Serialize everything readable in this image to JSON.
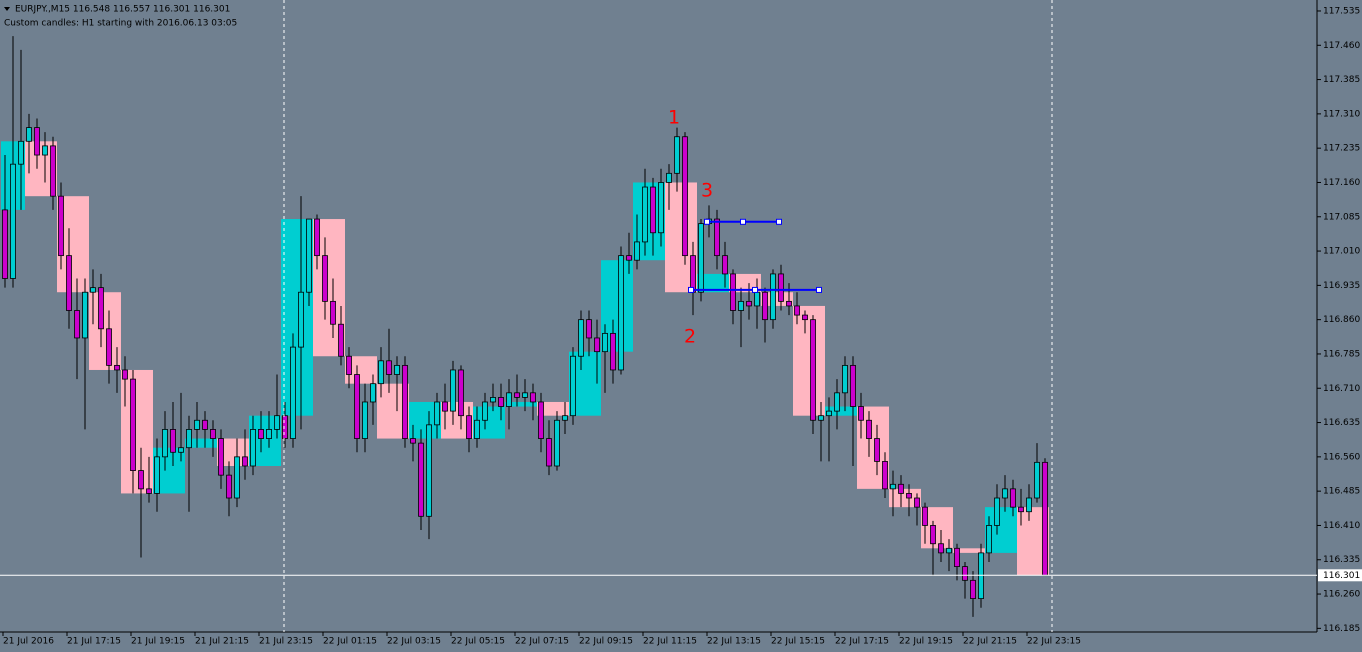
{
  "chart_data": {
    "type": "candlestick",
    "title": "EURJPY.,M15  116.548 116.557 116.301 116.301",
    "subtitle": "Custom candles: H1 starting with 2016.06.13 03:05",
    "ylim": [
      116.177,
      117.559
    ],
    "yticks": [
      117.535,
      {
        "value": 117.46,
        "label": "117.460"
      },
      117.385,
      {
        "value": 117.31,
        "label": "117.310"
      },
      117.235,
      {
        "value": 117.16,
        "label": "117.160"
      },
      117.085,
      {
        "value": 117.01,
        "label": "117.010"
      },
      116.935,
      {
        "value": 116.86,
        "label": "116.860"
      },
      116.785,
      {
        "value": 116.71,
        "label": "116.710"
      },
      116.635,
      {
        "value": 116.56,
        "label": "116.560"
      },
      116.485,
      {
        "value": 116.41,
        "label": "116.410"
      },
      116.335,
      {
        "value": 116.26,
        "label": "116.260"
      },
      116.185
    ],
    "x_labels": [
      "21 Jul 2016",
      "21 Jul 17:15",
      "21 Jul 19:15",
      "21 Jul 21:15",
      "21 Jul 23:15",
      "22 Jul 01:15",
      "22 Jul 03:15",
      "22 Jul 05:15",
      "22 Jul 07:15",
      "22 Jul 09:15",
      "22 Jul 11:15",
      "22 Jul 13:15",
      "22 Jul 15:15",
      "22 Jul 17:15",
      "22 Jul 19:15",
      "22 Jul 21:15",
      "22 Jul 23:15"
    ],
    "last_price": 116.301,
    "levels": [
      117.074,
      116.925
    ],
    "annotations": [
      "1",
      "2",
      "3"
    ],
    "colors": {
      "up": "#00ced1",
      "down": "#cc00cc",
      "box_up": "#00ced1",
      "box_down": "#ffb6c1",
      "level": "#0000ff",
      "annotation": "#ff0000"
    },
    "candles": [
      [
        117.1,
        117.22,
        116.93,
        116.95
      ],
      [
        116.95,
        117.48,
        116.93,
        117.2
      ],
      [
        117.2,
        117.45,
        117.1,
        117.25
      ],
      [
        117.25,
        117.31,
        117.18,
        117.28
      ],
      [
        117.28,
        117.3,
        117.19,
        117.22
      ],
      [
        117.22,
        117.27,
        117.16,
        117.24
      ],
      [
        117.24,
        117.26,
        117.1,
        117.13
      ],
      [
        117.13,
        117.16,
        116.97,
        117.0
      ],
      [
        117.0,
        117.06,
        116.84,
        116.88
      ],
      [
        116.88,
        116.95,
        116.73,
        116.82
      ],
      [
        116.82,
        116.95,
        116.62,
        116.92
      ],
      [
        116.92,
        116.97,
        116.85,
        116.93
      ],
      [
        116.93,
        116.96,
        116.8,
        116.84
      ],
      [
        116.84,
        116.88,
        116.72,
        116.76
      ],
      [
        116.76,
        116.8,
        116.7,
        116.75
      ],
      [
        116.75,
        116.78,
        116.67,
        116.73
      ],
      [
        116.73,
        116.75,
        116.48,
        116.53
      ],
      [
        116.53,
        116.58,
        116.34,
        116.49
      ],
      [
        116.49,
        116.56,
        116.46,
        116.48
      ],
      [
        116.48,
        116.6,
        116.44,
        116.56
      ],
      [
        116.56,
        116.66,
        116.53,
        116.62
      ],
      [
        116.62,
        116.68,
        116.54,
        116.57
      ],
      [
        116.57,
        116.7,
        116.55,
        116.58
      ],
      [
        116.58,
        116.65,
        116.44,
        116.62
      ],
      [
        116.62,
        116.68,
        116.58,
        116.64
      ],
      [
        116.64,
        116.66,
        116.58,
        116.62
      ],
      [
        116.62,
        116.64,
        116.56,
        116.6
      ],
      [
        116.6,
        116.62,
        116.49,
        116.52
      ],
      [
        116.52,
        116.55,
        116.43,
        116.47
      ],
      [
        116.47,
        116.6,
        116.45,
        116.56
      ],
      [
        116.56,
        116.62,
        116.51,
        116.54
      ],
      [
        116.54,
        116.65,
        116.52,
        116.62
      ],
      [
        116.62,
        116.66,
        116.57,
        116.6
      ],
      [
        116.6,
        116.66,
        116.58,
        116.62
      ],
      [
        116.62,
        116.74,
        116.6,
        116.65
      ],
      [
        116.65,
        116.68,
        116.58,
        116.6
      ],
      [
        116.6,
        116.83,
        116.58,
        116.8
      ],
      [
        116.8,
        117.13,
        116.62,
        116.92
      ],
      [
        116.92,
        117.08,
        116.89,
        117.08
      ],
      [
        117.08,
        117.09,
        116.97,
        117.0
      ],
      [
        117.0,
        117.04,
        116.86,
        116.9
      ],
      [
        116.9,
        116.95,
        116.82,
        116.85
      ],
      [
        116.85,
        116.89,
        116.76,
        116.78
      ],
      [
        116.78,
        116.8,
        116.71,
        116.74
      ],
      [
        116.74,
        116.76,
        116.57,
        116.6
      ],
      [
        116.6,
        116.72,
        116.57,
        116.68
      ],
      [
        116.68,
        116.74,
        116.63,
        116.72
      ],
      [
        116.72,
        116.8,
        116.69,
        116.77
      ],
      [
        116.77,
        116.84,
        116.7,
        116.74
      ],
      [
        116.74,
        116.78,
        116.66,
        116.76
      ],
      [
        116.76,
        116.78,
        116.58,
        116.6
      ],
      [
        116.6,
        116.63,
        116.55,
        116.59
      ],
      [
        116.59,
        116.62,
        116.4,
        116.43
      ],
      [
        116.43,
        116.66,
        116.38,
        116.63
      ],
      [
        116.63,
        116.7,
        116.6,
        116.68
      ],
      [
        116.68,
        116.72,
        116.62,
        116.66
      ],
      [
        116.66,
        116.77,
        116.63,
        116.75
      ],
      [
        116.75,
        116.76,
        116.62,
        116.65
      ],
      [
        116.65,
        116.67,
        116.57,
        116.6
      ],
      [
        116.6,
        116.67,
        116.58,
        116.64
      ],
      [
        116.64,
        116.7,
        116.62,
        116.68
      ],
      [
        116.68,
        116.72,
        116.66,
        116.69
      ],
      [
        116.69,
        116.72,
        116.64,
        116.67
      ],
      [
        116.67,
        116.73,
        116.62,
        116.7
      ],
      [
        116.7,
        116.74,
        116.67,
        116.69
      ],
      [
        116.69,
        116.73,
        116.66,
        116.7
      ],
      [
        116.7,
        116.72,
        116.64,
        116.68
      ],
      [
        116.68,
        116.7,
        116.57,
        116.6
      ],
      [
        116.6,
        116.64,
        116.52,
        116.54
      ],
      [
        116.54,
        116.66,
        116.53,
        116.64
      ],
      [
        116.64,
        116.68,
        116.61,
        116.65
      ],
      [
        116.65,
        116.8,
        116.63,
        116.78
      ],
      [
        116.78,
        116.88,
        116.75,
        116.86
      ],
      [
        116.86,
        116.88,
        116.78,
        116.82
      ],
      [
        116.82,
        116.86,
        116.72,
        116.79
      ],
      [
        116.79,
        116.85,
        116.7,
        116.83
      ],
      [
        116.83,
        116.86,
        116.72,
        116.75
      ],
      [
        116.75,
        117.02,
        116.74,
        117.0
      ],
      [
        117.0,
        117.05,
        116.96,
        116.99
      ],
      [
        116.99,
        117.09,
        116.97,
        117.03
      ],
      [
        117.03,
        117.19,
        117.0,
        117.15
      ],
      [
        117.15,
        117.17,
        117.0,
        117.05
      ],
      [
        117.05,
        117.19,
        117.02,
        117.16
      ],
      [
        117.16,
        117.2,
        117.1,
        117.18
      ],
      [
        117.18,
        117.28,
        117.14,
        117.26
      ],
      [
        117.26,
        117.27,
        116.98,
        117.0
      ],
      [
        117.0,
        117.03,
        116.87,
        116.92
      ],
      [
        116.92,
        117.08,
        116.9,
        117.07
      ],
      [
        117.07,
        117.11,
        117.04,
        117.08
      ],
      [
        117.08,
        117.1,
        116.97,
        117.0
      ],
      [
        117.0,
        117.03,
        116.93,
        116.96
      ],
      [
        116.96,
        116.97,
        116.85,
        116.88
      ],
      [
        116.88,
        116.93,
        116.8,
        116.9
      ],
      [
        116.9,
        116.94,
        116.86,
        116.89
      ],
      [
        116.89,
        116.95,
        116.84,
        116.92
      ],
      [
        116.92,
        116.93,
        116.81,
        116.86
      ],
      [
        116.86,
        116.97,
        116.84,
        116.96
      ],
      [
        116.96,
        116.98,
        116.88,
        116.9
      ],
      [
        116.9,
        116.94,
        116.87,
        116.89
      ],
      [
        116.89,
        116.92,
        116.85,
        116.87
      ],
      [
        116.87,
        116.88,
        116.83,
        116.86
      ],
      [
        116.86,
        116.87,
        116.61,
        116.64
      ],
      [
        116.64,
        116.68,
        116.55,
        116.65
      ],
      [
        116.65,
        116.69,
        116.55,
        116.66
      ],
      [
        116.66,
        116.73,
        116.62,
        116.7
      ],
      [
        116.7,
        116.78,
        116.66,
        116.76
      ],
      [
        116.76,
        116.78,
        116.54,
        116.67
      ],
      [
        116.67,
        116.7,
        116.6,
        116.64
      ],
      [
        116.64,
        116.66,
        116.56,
        116.6
      ],
      [
        116.6,
        116.63,
        116.52,
        116.55
      ],
      [
        116.55,
        116.57,
        116.47,
        116.49
      ],
      [
        116.49,
        116.53,
        116.43,
        116.5
      ],
      [
        116.5,
        116.52,
        116.45,
        116.48
      ],
      [
        116.48,
        116.5,
        116.43,
        116.47
      ],
      [
        116.47,
        116.48,
        116.41,
        116.45
      ],
      [
        116.45,
        116.46,
        116.37,
        116.41
      ],
      [
        116.41,
        116.42,
        116.3,
        116.37
      ],
      [
        116.37,
        116.4,
        116.33,
        116.35
      ],
      [
        116.35,
        116.38,
        116.31,
        116.36
      ],
      [
        116.36,
        116.37,
        116.29,
        116.32
      ],
      [
        116.32,
        116.33,
        116.25,
        116.29
      ],
      [
        116.29,
        116.31,
        116.21,
        116.25
      ],
      [
        116.25,
        116.37,
        116.23,
        116.35
      ],
      [
        116.35,
        116.43,
        116.33,
        116.41
      ],
      [
        116.41,
        116.5,
        116.39,
        116.47
      ],
      [
        116.47,
        116.52,
        116.44,
        116.49
      ],
      [
        116.49,
        116.51,
        116.43,
        116.45
      ],
      [
        116.45,
        116.49,
        116.41,
        116.44
      ],
      [
        116.44,
        116.5,
        116.42,
        116.47
      ],
      [
        116.47,
        116.59,
        116.46,
        116.548
      ],
      [
        116.548,
        116.557,
        116.301,
        116.301
      ]
    ]
  }
}
